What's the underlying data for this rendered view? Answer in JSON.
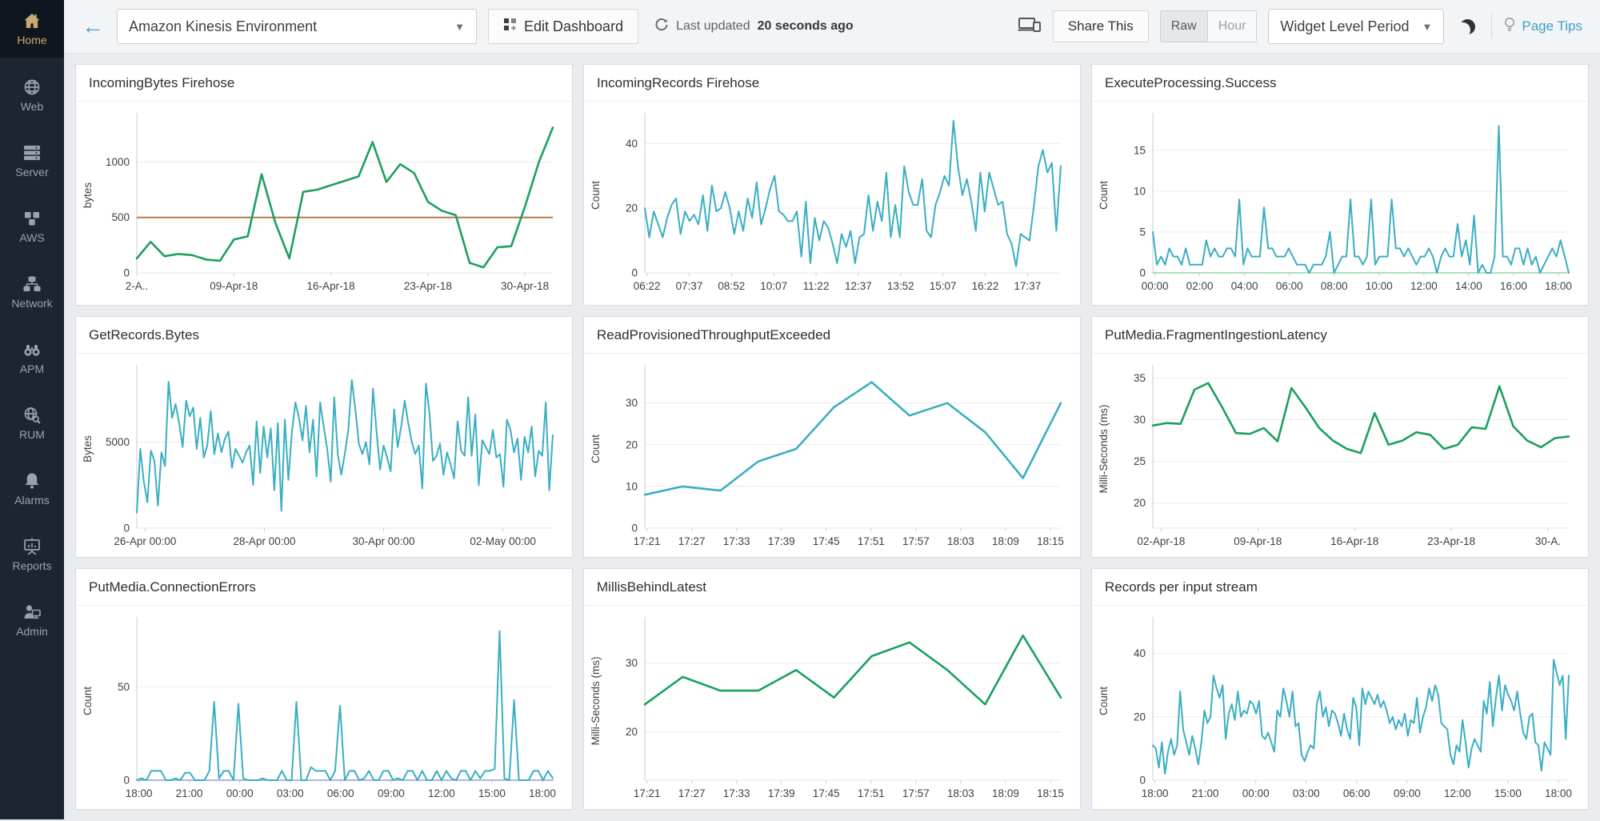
{
  "sidebar": {
    "items": [
      {
        "label": "Home",
        "icon": "home-icon",
        "active": true
      },
      {
        "label": "Web",
        "icon": "globe-icon",
        "active": false
      },
      {
        "label": "Server",
        "icon": "server-stack-icon",
        "active": false
      },
      {
        "label": "AWS",
        "icon": "aws-cubes-icon",
        "active": false
      },
      {
        "label": "Network",
        "icon": "network-nodes-icon",
        "active": false
      },
      {
        "label": "APM",
        "icon": "binoculars-icon",
        "active": false
      },
      {
        "label": "RUM",
        "icon": "globe-search-icon",
        "active": false
      },
      {
        "label": "Alarms",
        "icon": "bell-icon",
        "active": false
      },
      {
        "label": "Reports",
        "icon": "presentation-icon",
        "active": false
      },
      {
        "label": "Admin",
        "icon": "admin-user-icon",
        "active": false
      }
    ]
  },
  "header": {
    "dashboard_name": "Amazon Kinesis Environment",
    "edit_dashboard": "Edit Dashboard",
    "last_updated_prefix": "Last updated",
    "last_updated_value": "20 seconds ago",
    "share_this": "Share This",
    "toggle": {
      "raw": "Raw",
      "hour": "Hour",
      "selected": "Raw"
    },
    "widget_period": "Widget Level Period",
    "page_tips": "Page Tips"
  },
  "colors": {
    "green_series": "#1ca05f",
    "teal_series": "#3aaec2",
    "threshold_orange": "#b17a48",
    "sidebar_bg": "#1d2531",
    "accent_blue": "#3da0c6"
  },
  "charts": [
    {
      "title": "IncomingBytes Firehose",
      "chart_data": {
        "type": "line",
        "ylabel": "bytes",
        "yticks": [
          0,
          500,
          1000
        ],
        "ylim": [
          0,
          1400
        ],
        "grid": true,
        "x_labels": [
          "2-A..",
          "09-Apr-18",
          "16-Apr-18",
          "23-Apr-18",
          "30-Apr-18"
        ],
        "x_span": [
          0.0,
          0.933
        ],
        "threshold": {
          "value": 500,
          "color": "#b17a48"
        },
        "series": [
          {
            "color": "#1ca05f",
            "values": [
              130,
              280,
              150,
              170,
              160,
              120,
              110,
              300,
              330,
              890,
              450,
              130,
              730,
              750,
              790,
              830,
              870,
              1180,
              820,
              980,
              900,
              640,
              560,
              520,
              90,
              50,
              230,
              240,
              600,
              1000,
              1310
            ]
          }
        ]
      }
    },
    {
      "title": "IncomingRecords Firehose",
      "chart_data": {
        "type": "line",
        "ylabel": "Count",
        "yticks": [
          0,
          20,
          40
        ],
        "ylim": [
          0,
          48
        ],
        "grid": true,
        "x_labels": [
          "06:22",
          "07:37",
          "08:52",
          "10:07",
          "11:22",
          "12:37",
          "13:52",
          "15:07",
          "16:22",
          "17:37"
        ],
        "x_span": [
          0.005,
          0.92
        ],
        "series": [
          {
            "color": "#3aaec2",
            "values": [
              20,
              11,
              19,
              15,
              11,
              17,
              21,
              23,
              12,
              19,
              16,
              18,
              15,
              24,
              13,
              27,
              19,
              20,
              25,
              20,
              12,
              19,
              13,
              23,
              17,
              28,
              15,
              20,
              26,
              30,
              19,
              18,
              16,
              16,
              19,
              5,
              22,
              3,
              17,
              10,
              16,
              14,
              9,
              3,
              12,
              8,
              13,
              3,
              11,
              12,
              24,
              13,
              22,
              16,
              31,
              11,
              21,
              11,
              33,
              25,
              21,
              21,
              29,
              13,
              11,
              21,
              25,
              30,
              27,
              47,
              33,
              24,
              29,
              22,
              13,
              31,
              19,
              31,
              26,
              21,
              22,
              12,
              9,
              2,
              12,
              11,
              10,
              21,
              33,
              38,
              31,
              34,
              13,
              33
            ]
          }
        ]
      }
    },
    {
      "title": "ExecuteProcessing.Success",
      "chart_data": {
        "type": "line",
        "ylabel": "Count",
        "yticks": [
          0,
          5,
          10,
          15
        ],
        "ylim": [
          0,
          19
        ],
        "grid": true,
        "x_labels": [
          "00:00",
          "02:00",
          "04:00",
          "06:00",
          "08:00",
          "10:00",
          "12:00",
          "14:00",
          "16:00",
          "18:00"
        ],
        "x_span": [
          0.005,
          0.975
        ],
        "series": [
          {
            "color": "#8fd6a2",
            "width": 1.5,
            "values": [
              0,
              0
            ]
          },
          {
            "color": "#3aaec2",
            "values": [
              5,
              1,
              2,
              1,
              3,
              2,
              2,
              1,
              3,
              1,
              1,
              1,
              1,
              4,
              2,
              3,
              2,
              2,
              3,
              3,
              2,
              9,
              1,
              3,
              2,
              2,
              2,
              8,
              3,
              3,
              2,
              2,
              2,
              3,
              2,
              1,
              1,
              1,
              0,
              1,
              1,
              1,
              2,
              5,
              0,
              1,
              2,
              2,
              9,
              2,
              2,
              1,
              2,
              9,
              1,
              2,
              2,
              2,
              9,
              3,
              3,
              2,
              3,
              2,
              1,
              2,
              2,
              3,
              2,
              0,
              2,
              3,
              2,
              2,
              6,
              2,
              4,
              1,
              7,
              0,
              1,
              0,
              0,
              2,
              18,
              2,
              2,
              1,
              3,
              3,
              1,
              3,
              1,
              2,
              0,
              1,
              2,
              3,
              2,
              4,
              2,
              0
            ]
          }
        ]
      }
    },
    {
      "title": "GetRecords.Bytes",
      "chart_data": {
        "type": "line",
        "ylabel": "Bytes",
        "yticks": [
          0,
          5000
        ],
        "ylim": [
          0,
          9200
        ],
        "grid": true,
        "x_labels": [
          "26-Apr 00:00",
          "28-Apr 00:00",
          "30-Apr 00:00",
          "02-May 00:00"
        ],
        "x_span": [
          0.02,
          0.88
        ],
        "series": [
          {
            "color": "#3aaec2",
            "values": [
              900,
              4600,
              2700,
              1500,
              4500,
              3900,
              1300,
              4400,
              3600,
              8500,
              6400,
              7200,
              6100,
              4700,
              7400,
              6500,
              7000,
              4600,
              6400,
              4100,
              4800,
              6800,
              4300,
              5500,
              4400,
              5200,
              5600,
              3500,
              4600,
              4200,
              3800,
              4400,
              4800,
              2500,
              6200,
              3200,
              5900,
              4100,
              5800,
              2200,
              6100,
              1000,
              6300,
              2800,
              5600,
              7300,
              6400,
              5100,
              7100,
              4400,
              6300,
              3000,
              7300,
              5900,
              4600,
              2700,
              7600,
              4300,
              3100,
              4300,
              5700,
              8600,
              6900,
              4900,
              4300,
              5000,
              3700,
              8100,
              5600,
              3400,
              4800,
              4100,
              3300,
              6900,
              4700,
              5900,
              7400,
              6100,
              5000,
              4300,
              4800,
              2300,
              8400,
              6700,
              3900,
              4200,
              4900,
              3100,
              4400,
              3700,
              2900,
              6200,
              4500,
              4200,
              7600,
              4200,
              6600,
              2500,
              5100,
              4700,
              4300,
              5700,
              4100,
              4300,
              2400,
              6300,
              5700,
              4400,
              5200,
              2800,
              5300,
              4400,
              5900,
              3000,
              4500,
              4200,
              7300,
              2200,
              5400
            ]
          }
        ]
      }
    },
    {
      "title": "ReadProvisionedThroughputExceeded",
      "chart_data": {
        "type": "line",
        "ylabel": "Count",
        "yticks": [
          0,
          10,
          20,
          30
        ],
        "ylim": [
          0,
          38
        ],
        "grid": true,
        "x_labels": [
          "17:21",
          "17:27",
          "17:33",
          "17:39",
          "17:45",
          "17:51",
          "17:57",
          "18:03",
          "18:09",
          "18:15"
        ],
        "x_span": [
          0.005,
          0.975
        ],
        "series": [
          {
            "color": "#3aaec2",
            "values": [
              8,
              10,
              9,
              16,
              19,
              29,
              35,
              27,
              30,
              23,
              12,
              30
            ]
          }
        ]
      }
    },
    {
      "title": "PutMedia.FragmentIngestionLatency",
      "chart_data": {
        "type": "line",
        "ylabel": "Milli-Seconds (ms)",
        "yticks": [
          20,
          25,
          30,
          35
        ],
        "ylim": [
          17,
          36
        ],
        "grid": true,
        "x_labels": [
          "02-Apr-18",
          "09-Apr-18",
          "16-Apr-18",
          "23-Apr-18",
          "30-A."
        ],
        "x_span": [
          0.02,
          0.95
        ],
        "series": [
          {
            "color": "#1ca05f",
            "values": [
              29.3,
              29.6,
              29.5,
              33.6,
              34.4,
              31.5,
              28.4,
              28.3,
              29,
              27.4,
              33.8,
              31.5,
              29,
              27.5,
              26.5,
              26,
              30.8,
              27,
              27.5,
              28.5,
              28.2,
              26.5,
              27,
              29.1,
              28.9,
              34,
              29.2,
              27.5,
              26.7,
              27.8,
              28
            ]
          }
        ]
      }
    },
    {
      "title": "PutMedia.ConnectionErrors",
      "chart_data": {
        "type": "line",
        "ylabel": "Count",
        "yticks": [
          0,
          50
        ],
        "ylim": [
          0,
          85
        ],
        "grid": true,
        "x_labels": [
          "18:00",
          "21:00",
          "00:00",
          "03:00",
          "06:00",
          "09:00",
          "12:00",
          "15:00",
          "18:00"
        ],
        "x_span": [
          0.005,
          0.975
        ],
        "series": [
          {
            "color": "#8e9fdb",
            "width": 1.5,
            "values": [
              0,
              0
            ]
          },
          {
            "color": "#3aaec2",
            "values": [
              0,
              1,
              0,
              5,
              5,
              5,
              0,
              0,
              1,
              0,
              4,
              4,
              0,
              0,
              0,
              5,
              42,
              1,
              5,
              5,
              0,
              41,
              1,
              0,
              0,
              0,
              1,
              0,
              0,
              0,
              5,
              0,
              0,
              42,
              0,
              0,
              7,
              5,
              5,
              5,
              0,
              5,
              40,
              0,
              5,
              5,
              0,
              1,
              5,
              0,
              0,
              5,
              5,
              0,
              1,
              0,
              5,
              5,
              0,
              5,
              0,
              0,
              5,
              0,
              5,
              1,
              0,
              5,
              5,
              0,
              5,
              1,
              5,
              5,
              6,
              80,
              1,
              0,
              43,
              0,
              0,
              0,
              5,
              5,
              0,
              5,
              1
            ]
          }
        ]
      }
    },
    {
      "title": "MillisBehindLatest",
      "chart_data": {
        "type": "line",
        "ylabel": "Milli-Seconds (ms)",
        "yticks": [
          20,
          30
        ],
        "ylim": [
          13,
          36
        ],
        "grid": true,
        "x_labels": [
          "17:21",
          "17:27",
          "17:33",
          "17:39",
          "17:45",
          "17:51",
          "17:57",
          "18:03",
          "18:09",
          "18:15"
        ],
        "x_span": [
          0.005,
          0.975
        ],
        "series": [
          {
            "color": "#1ca05f",
            "values": [
              24,
              28,
              26,
              26,
              29,
              25,
              31,
              33,
              29,
              24,
              34,
              25
            ]
          }
        ]
      }
    },
    {
      "title": "Records per input stream",
      "chart_data": {
        "type": "line",
        "ylabel": "Count",
        "yticks": [
          0,
          20,
          40
        ],
        "ylim": [
          0,
          50
        ],
        "grid": true,
        "x_labels": [
          "18:00",
          "21:00",
          "00:00",
          "03:00",
          "06:00",
          "09:00",
          "12:00",
          "15:00",
          "18:00"
        ],
        "x_span": [
          0.005,
          0.975
        ],
        "series": [
          {
            "color": "#3aaec2",
            "values": [
              11,
              10,
              4,
              12,
              2,
              9,
              13,
              8,
              11,
              28,
              16,
              12,
              8,
              14,
              10,
              5,
              12,
              22,
              18,
              20,
              33,
              29,
              26,
              30,
              13,
              21,
              24,
              19,
              28,
              20,
              22,
              21,
              25,
              24,
              21,
              25,
              14,
              13,
              15,
              12,
              9,
              22,
              20,
              29,
              25,
              20,
              28,
              17,
              18,
              8,
              6,
              9,
              11,
              10,
              24,
              28,
              20,
              23,
              17,
              22,
              21,
              18,
              14,
              21,
              16,
              13,
              26,
              23,
              11,
              29,
              24,
              28,
              26,
              24,
              27,
              23,
              25,
              22,
              18,
              20,
              16,
              19,
              17,
              21,
              14,
              19,
              18,
              26,
              15,
              20,
              23,
              29,
              25,
              30,
              27,
              18,
              17,
              16,
              8,
              5,
              11,
              9,
              19,
              12,
              4,
              10,
              13,
              11,
              9,
              25,
              21,
              31,
              17,
              26,
              33,
              22,
              30,
              27,
              25,
              22,
              28,
              21,
              15,
              13,
              20,
              21,
              12,
              11,
              3,
              12,
              10,
              8,
              38,
              34,
              30,
              33,
              13,
              33
            ]
          }
        ]
      }
    }
  ]
}
